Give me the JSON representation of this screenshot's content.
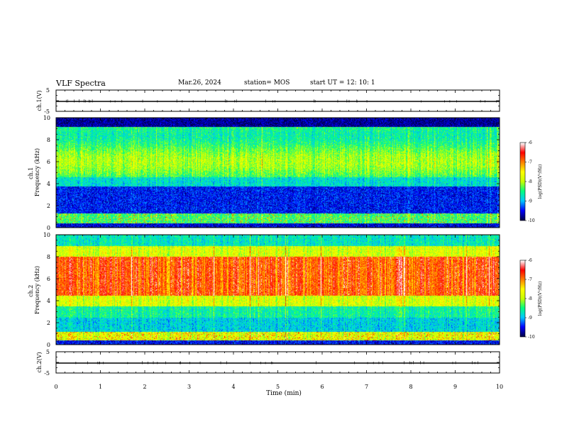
{
  "header": {
    "title": "VLF Spectra",
    "date": "Mar.26, 2024",
    "station": "station= MOS",
    "start": "start  UT  =    12: 10: 1"
  },
  "chart_data": [
    {
      "type": "line",
      "panel": "ch1-waveform",
      "ylabel": "ch.1(V)",
      "ylim": [
        -5,
        5
      ],
      "yticks": [
        "5",
        "-5"
      ],
      "xlim": [
        0,
        10
      ],
      "series": [
        {
          "values_approx": 0
        }
      ]
    },
    {
      "type": "heatmap",
      "panel": "ch1-spectrogram",
      "ylabel": "Frequency (kHz)",
      "ylabel_prefix": "ch.1",
      "ylim": [
        0,
        10
      ],
      "yticks": [
        "0",
        "2",
        "4",
        "6",
        "8",
        "10"
      ],
      "xlim": [
        0,
        10
      ],
      "colorbar": {
        "label": "log(PSD)(V²/Hz)",
        "range": [
          -10,
          -6
        ],
        "ticks": [
          "-6",
          "-7",
          "-8",
          "-9",
          "-10"
        ]
      }
    },
    {
      "type": "heatmap",
      "panel": "ch2-spectrogram",
      "ylabel": "Frequency (kHz)",
      "ylabel_prefix": "ch.2",
      "ylim": [
        0,
        10
      ],
      "yticks": [
        "0",
        "2",
        "4",
        "6",
        "8",
        "10"
      ],
      "xlim": [
        0,
        10
      ],
      "colorbar": {
        "label": "log(PSD)(V²/Hz)",
        "range": [
          -10,
          -6
        ],
        "ticks": [
          "-6",
          "-7",
          "-8",
          "-9",
          "-10"
        ]
      }
    },
    {
      "type": "line",
      "panel": "ch2-waveform",
      "ylabel": "ch.2(V)",
      "ylim": [
        -5,
        5
      ],
      "yticks": [
        "5",
        "-5"
      ],
      "xlim": [
        0,
        10
      ],
      "series": [
        {
          "values_approx": 0
        }
      ]
    }
  ],
  "xaxis": {
    "label": "Time (min)",
    "ticks": [
      "0",
      "1",
      "2",
      "3",
      "4",
      "5",
      "6",
      "7",
      "8",
      "9",
      "10"
    ]
  },
  "colors": {
    "cmap": [
      "#00004a",
      "#0000ff",
      "#00c8ff",
      "#00ff80",
      "#c8ff00",
      "#ffff00",
      "#ff8000",
      "#ff0000",
      "#ffffff"
    ]
  }
}
